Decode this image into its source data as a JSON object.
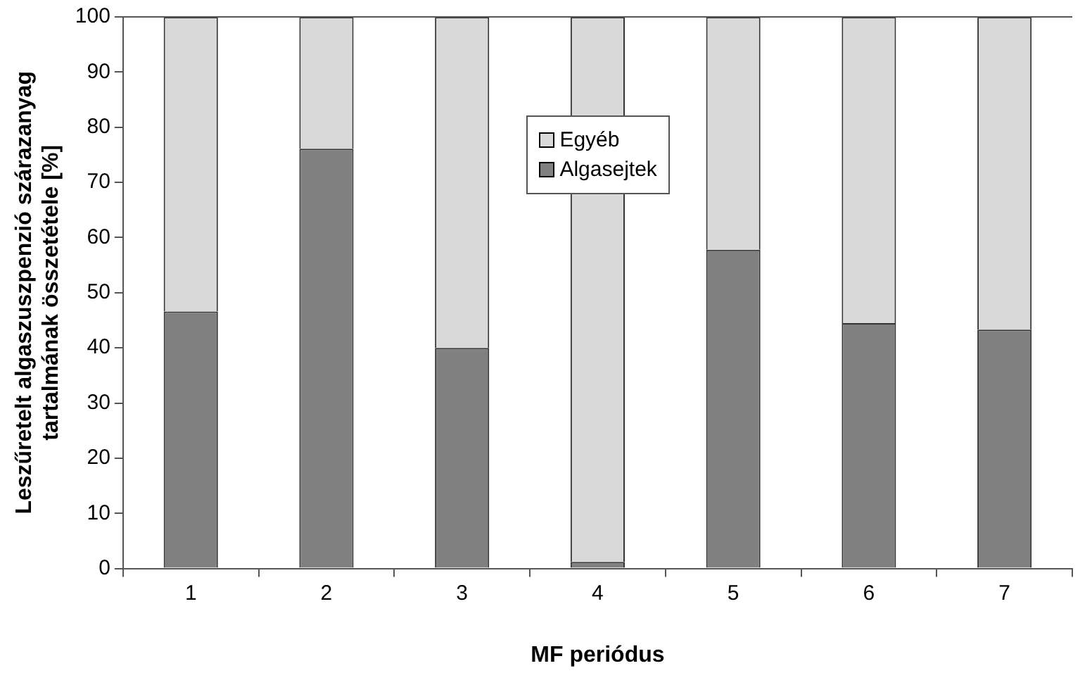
{
  "chart_data": {
    "type": "bar",
    "stacked": true,
    "xlabel": "MF periódus",
    "ylabel": "Leszűretelt algaszuszpenzió szárazanyag tartalmának összetétele [%]",
    "categories": [
      "1",
      "2",
      "3",
      "4",
      "5",
      "6",
      "7"
    ],
    "series": [
      {
        "name": "Algasejtek",
        "color": "#808080",
        "values": [
          46.6,
          76.1,
          40,
          1.2,
          57.8,
          44.5,
          43.3
        ]
      },
      {
        "name": "Egyéb",
        "color": "#d9d9d9",
        "values": [
          53.4,
          23.9,
          60,
          98.8,
          42.2,
          55.5,
          56.7
        ]
      }
    ],
    "ylim": [
      0,
      100
    ],
    "yticks": [
      0,
      10,
      20,
      30,
      40,
      50,
      60,
      70,
      80,
      90,
      100
    ],
    "grid": false,
    "legend": "top"
  }
}
